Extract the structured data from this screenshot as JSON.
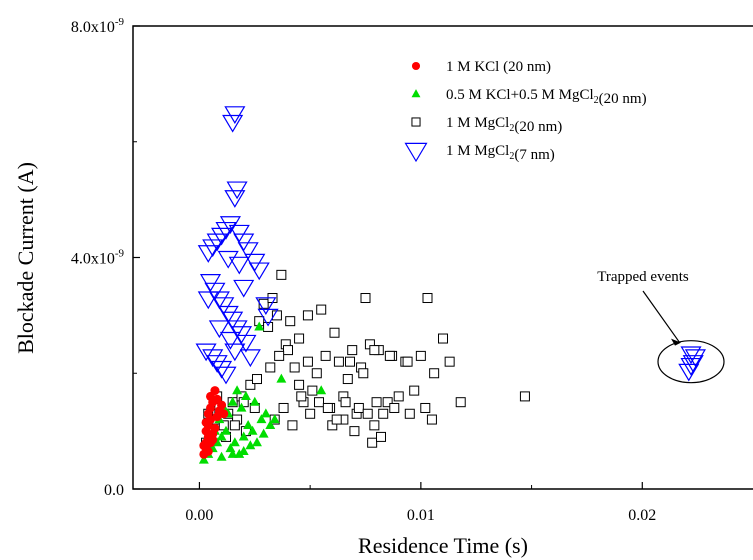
{
  "chart_data": {
    "type": "scatter",
    "xlabel": "Residence Time (s)",
    "ylabel": "Blockade Current (A)",
    "xlim": [
      -0.003,
      0.025
    ],
    "ylim": [
      0,
      8e-09
    ],
    "x_ticks": [
      {
        "value": 0.0,
        "label": "0.00"
      },
      {
        "value": 0.01,
        "label": "0.01"
      },
      {
        "value": 0.02,
        "label": "0.02"
      }
    ],
    "y_ticks": [
      {
        "value": 0.0,
        "label_base": "0.0",
        "label_exp": ""
      },
      {
        "value": 4e-09,
        "label_base": "4.0x10",
        "label_exp": "-9"
      },
      {
        "value": 8e-09,
        "label_base": "8.0x10",
        "label_exp": "-9"
      }
    ],
    "legend_position": "top-right",
    "annotation": {
      "text": "Trapped events",
      "x": 0.0222,
      "y": 2.2e-09
    },
    "series": [
      {
        "name": "1 M KCl    (20 nm)",
        "legend_parts": [
          {
            "t": "1 M KCl    (20 nm)",
            "sub": false
          }
        ],
        "marker": "circle",
        "color": "#ff0000",
        "points": [
          [
            0.0002,
            6e-10
          ],
          [
            0.0003,
            7e-10
          ],
          [
            0.0003,
            8e-10
          ],
          [
            0.0004,
            9e-10
          ],
          [
            0.0003,
            1e-09
          ],
          [
            0.0004,
            1.1e-09
          ],
          [
            0.0005,
            1.2e-09
          ],
          [
            0.0004,
            1.3e-09
          ],
          [
            0.0005,
            1.4e-09
          ],
          [
            0.0006,
            1.5e-09
          ],
          [
            0.0005,
            1.6e-09
          ],
          [
            0.0007,
            1.7e-09
          ],
          [
            0.0002,
            7.5e-10
          ],
          [
            0.0006,
            9.5e-10
          ],
          [
            0.0007,
            1.05e-09
          ],
          [
            0.0008,
            1.25e-09
          ],
          [
            0.0009,
            1.35e-09
          ],
          [
            0.001,
            1.45e-09
          ],
          [
            0.0004,
            6.5e-10
          ],
          [
            0.0006,
            8.5e-10
          ],
          [
            0.0003,
            1.15e-09
          ],
          [
            0.0008,
            1.55e-09
          ],
          [
            0.0011,
            1.3e-09
          ],
          [
            0.0005,
            8e-10
          ]
        ]
      },
      {
        "name": "0.5 M KCl+0.5 M MgCl2(20 nm)",
        "legend_parts": [
          {
            "t": "0.5 M KCl+0.5 M MgCl",
            "sub": false
          },
          {
            "t": "2",
            "sub": true
          },
          {
            "t": "(20 nm)",
            "sub": false
          }
        ],
        "marker": "triangle-up",
        "color": "#00dd00",
        "points": [
          [
            0.0002,
            5e-10
          ],
          [
            0.0004,
            6e-10
          ],
          [
            0.0006,
            7e-10
          ],
          [
            0.0008,
            8e-10
          ],
          [
            0.001,
            9e-10
          ],
          [
            0.0012,
            1e-09
          ],
          [
            0.0014,
            7e-10
          ],
          [
            0.0016,
            8e-10
          ],
          [
            0.0018,
            6e-10
          ],
          [
            0.002,
            9e-10
          ],
          [
            0.0022,
            1.1e-09
          ],
          [
            0.0024,
            1e-09
          ],
          [
            0.0026,
            8e-10
          ],
          [
            0.0028,
            1.2e-09
          ],
          [
            0.003,
            1.3e-09
          ],
          [
            0.0032,
            1.1e-09
          ],
          [
            0.0009,
            1.2e-09
          ],
          [
            0.0011,
            1.4e-09
          ],
          [
            0.0013,
            1.3e-09
          ],
          [
            0.0015,
            1.5e-09
          ],
          [
            0.0017,
            1.7e-09
          ],
          [
            0.0019,
            1.4e-09
          ],
          [
            0.0021,
            1.6e-09
          ],
          [
            0.0007,
            1e-09
          ],
          [
            0.0005,
            8e-10
          ],
          [
            0.0025,
            1.5e-09
          ],
          [
            0.0037,
            1.9e-09
          ],
          [
            0.0055,
            1.7e-09
          ],
          [
            0.0027,
            2.8e-09
          ],
          [
            0.001,
            5.5e-10
          ],
          [
            0.0015,
            6e-10
          ],
          [
            0.002,
            6.5e-10
          ],
          [
            0.0023,
            7.5e-10
          ],
          [
            0.0029,
            9.5e-10
          ],
          [
            0.0034,
            1.2e-09
          ]
        ]
      },
      {
        "name": "1 M MgCl2(20 nm)",
        "legend_parts": [
          {
            "t": "1 M MgCl",
            "sub": false
          },
          {
            "t": "2",
            "sub": true
          },
          {
            "t": "(20 nm)",
            "sub": false
          }
        ],
        "marker": "square",
        "color": "#000000",
        "points": [
          [
            0.0003,
            8e-10
          ],
          [
            0.0005,
            1e-09
          ],
          [
            0.0007,
            1.2e-09
          ],
          [
            0.0009,
            1.4e-09
          ],
          [
            0.0011,
            1.1e-09
          ],
          [
            0.0013,
            1.3e-09
          ],
          [
            0.0015,
            1.5e-09
          ],
          [
            0.0017,
            1.2e-09
          ],
          [
            0.0019,
            1.6e-09
          ],
          [
            0.0021,
            1e-09
          ],
          [
            0.0023,
            1.8e-09
          ],
          [
            0.0025,
            1.4e-09
          ],
          [
            0.0027,
            2.9e-09
          ],
          [
            0.0029,
            3.2e-09
          ],
          [
            0.0031,
            2.8e-09
          ],
          [
            0.0033,
            3.3e-09
          ],
          [
            0.0035,
            3e-09
          ],
          [
            0.0037,
            3.7e-09
          ],
          [
            0.0039,
            2.5e-09
          ],
          [
            0.0041,
            2.9e-09
          ],
          [
            0.0043,
            2.1e-09
          ],
          [
            0.0045,
            1.8e-09
          ],
          [
            0.0047,
            1.5e-09
          ],
          [
            0.0049,
            2.2e-09
          ],
          [
            0.0051,
            1.7e-09
          ],
          [
            0.0053,
            2e-09
          ],
          [
            0.0055,
            3.1e-09
          ],
          [
            0.0057,
            2.3e-09
          ],
          [
            0.0059,
            1.4e-09
          ],
          [
            0.0061,
            2.7e-09
          ],
          [
            0.0063,
            2.2e-09
          ],
          [
            0.0065,
            1.6e-09
          ],
          [
            0.0067,
            1.9e-09
          ],
          [
            0.0069,
            2.4e-09
          ],
          [
            0.0071,
            1.3e-09
          ],
          [
            0.0073,
            2.1e-09
          ],
          [
            0.0075,
            3.3e-09
          ],
          [
            0.0077,
            2.5e-09
          ],
          [
            0.0079,
            1.1e-09
          ],
          [
            0.0081,
            2.4e-09
          ],
          [
            0.0083,
            1.3e-09
          ],
          [
            0.0085,
            1.5e-09
          ],
          [
            0.0087,
            2.3e-09
          ],
          [
            0.009,
            1.6e-09
          ],
          [
            0.0093,
            2.2e-09
          ],
          [
            0.0097,
            1.7e-09
          ],
          [
            0.01,
            2.3e-09
          ],
          [
            0.0103,
            3.3e-09
          ],
          [
            0.0106,
            2e-09
          ],
          [
            0.011,
            2.6e-09
          ],
          [
            0.0113,
            2.2e-09
          ],
          [
            0.0118,
            1.5e-09
          ],
          [
            0.0147,
            1.6e-09
          ],
          [
            0.006,
            1.1e-09
          ],
          [
            0.0065,
            1.2e-09
          ],
          [
            0.007,
            1e-09
          ],
          [
            0.0078,
            8e-10
          ],
          [
            0.0082,
            9e-10
          ],
          [
            0.0088,
            1.4e-09
          ],
          [
            0.0095,
            1.3e-09
          ],
          [
            0.0102,
            1.4e-09
          ],
          [
            0.0105,
            1.2e-09
          ],
          [
            0.0068,
            2.2e-09
          ],
          [
            0.0074,
            2e-09
          ],
          [
            0.0079,
            2.4e-09
          ],
          [
            0.0086,
            2.3e-09
          ],
          [
            0.0094,
            2.2e-09
          ],
          [
            0.0049,
            3e-09
          ],
          [
            0.0045,
            2.6e-09
          ],
          [
            0.004,
            2.4e-09
          ],
          [
            0.0036,
            2.3e-09
          ],
          [
            0.0032,
            2.1e-09
          ],
          [
            0.0026,
            1.9e-09
          ],
          [
            0.002,
            1.5e-09
          ],
          [
            0.0016,
            1.1e-09
          ],
          [
            0.0012,
            9e-10
          ],
          [
            0.0008,
            1.6e-09
          ],
          [
            0.0004,
            1.3e-09
          ],
          [
            0.0034,
            1.2e-09
          ],
          [
            0.0038,
            1.4e-09
          ],
          [
            0.0042,
            1.1e-09
          ],
          [
            0.0046,
            1.6e-09
          ],
          [
            0.005,
            1.3e-09
          ],
          [
            0.0054,
            1.5e-09
          ],
          [
            0.0058,
            1.4e-09
          ],
          [
            0.0062,
            1.2e-09
          ],
          [
            0.0066,
            1.5e-09
          ],
          [
            0.0072,
            1.4e-09
          ],
          [
            0.0076,
            1.3e-09
          ],
          [
            0.008,
            1.5e-09
          ]
        ]
      },
      {
        "name": "1 M MgCl2(7 nm)",
        "legend_parts": [
          {
            "t": "1 M MgCl",
            "sub": false
          },
          {
            "t": "2",
            "sub": true
          },
          {
            "t": "(7 nm)",
            "sub": false
          }
        ],
        "marker": "triangle-down",
        "color": "#0000ff",
        "points": [
          [
            0.0016,
            6.5e-09
          ],
          [
            0.0015,
            6.35e-09
          ],
          [
            0.0017,
            5.2e-09
          ],
          [
            0.0016,
            5.05e-09
          ],
          [
            0.0014,
            4.6e-09
          ],
          [
            0.0012,
            4.5e-09
          ],
          [
            0.001,
            4.4e-09
          ],
          [
            0.0008,
            4.3e-09
          ],
          [
            0.0006,
            4.2e-09
          ],
          [
            0.0004,
            4.1e-09
          ],
          [
            0.0018,
            4.45e-09
          ],
          [
            0.002,
            4.3e-09
          ],
          [
            0.0022,
            4.15e-09
          ],
          [
            0.0025,
            3.95e-09
          ],
          [
            0.0027,
            3.8e-09
          ],
          [
            0.0005,
            3.6e-09
          ],
          [
            0.0007,
            3.45e-09
          ],
          [
            0.0009,
            3.3e-09
          ],
          [
            0.0011,
            3.2e-09
          ],
          [
            0.0013,
            3.05e-09
          ],
          [
            0.0015,
            2.95e-09
          ],
          [
            0.0017,
            2.8e-09
          ],
          [
            0.0019,
            2.7e-09
          ],
          [
            0.0021,
            2.55e-09
          ],
          [
            0.0003,
            2.4e-09
          ],
          [
            0.0006,
            2.3e-09
          ],
          [
            0.0008,
            2.2e-09
          ],
          [
            0.001,
            2.1e-09
          ],
          [
            0.0012,
            2e-09
          ],
          [
            0.0018,
            3.9e-09
          ],
          [
            0.0013,
            4e-09
          ],
          [
            0.002,
            3.5e-09
          ],
          [
            0.003,
            3.2e-09
          ],
          [
            0.0031,
            3e-09
          ],
          [
            0.0004,
            3.3e-09
          ],
          [
            0.0016,
            2.4e-09
          ],
          [
            0.0023,
            2.3e-09
          ],
          [
            0.0014,
            2.6e-09
          ],
          [
            0.0009,
            2.8e-09
          ],
          [
            0.0222,
            2.35e-09
          ],
          [
            0.0223,
            2.2e-09
          ],
          [
            0.0221,
            2.05e-09
          ],
          [
            0.0224,
            2.3e-09
          ],
          [
            0.0222,
            2.15e-09
          ]
        ]
      }
    ]
  }
}
